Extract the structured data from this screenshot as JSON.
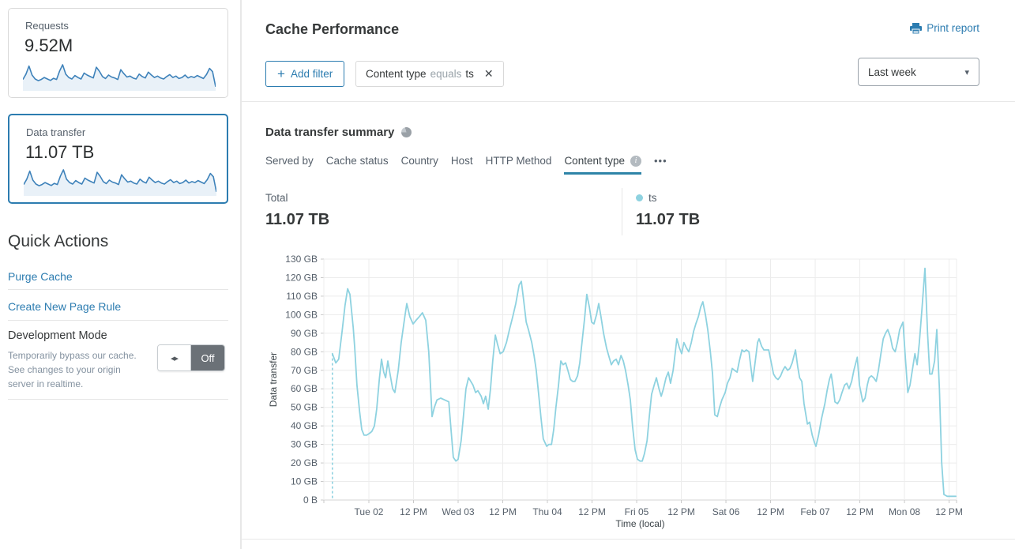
{
  "colors": {
    "accent_blue": "#2c7cb0",
    "tab_underline": "#2e84a8",
    "chart_line": "#8ed2e0",
    "legend_dot": "#8ed2e0",
    "sparkline_line": "#3e82ba",
    "sparkline_fill": "#e9f1f8",
    "toggle_off_bg": "#6b7177"
  },
  "icons": {
    "plus": "+",
    "close": "✕",
    "caret_down": "▾",
    "toggle_arrows": "◂▸",
    "more_dots": "•••",
    "info": "i"
  },
  "sidebar": {
    "cards": [
      {
        "title": "Requests",
        "value": "9.52M",
        "selected": false
      },
      {
        "title": "Data transfer",
        "value": "11.07 TB",
        "selected": true
      }
    ],
    "sparkline_note": "relative scale 0-100",
    "sparkline": [
      40,
      62,
      95,
      58,
      42,
      35,
      40,
      48,
      42,
      36,
      45,
      40,
      75,
      100,
      62,
      48,
      42,
      56,
      48,
      42,
      66,
      58,
      52,
      46,
      90,
      74,
      52,
      44,
      58,
      50,
      46,
      40,
      80,
      64,
      50,
      54,
      46,
      42,
      62,
      52,
      46,
      70,
      58,
      48,
      54,
      46,
      42,
      52,
      60,
      48,
      54,
      44,
      48,
      58,
      46,
      52,
      48,
      56,
      50,
      44,
      60,
      85,
      72,
      10
    ],
    "quick_actions": {
      "heading": "Quick Actions",
      "links": [
        {
          "label": "Purge Cache"
        },
        {
          "label": "Create New Page Rule"
        }
      ],
      "dev_mode": {
        "title": "Development Mode",
        "description": "Temporarily bypass our cache. See changes to your origin server in realtime.",
        "toggle_label": "Off"
      }
    }
  },
  "header": {
    "title": "Cache Performance",
    "print_label": "Print report"
  },
  "filters": {
    "add_label": "Add filter",
    "chip": {
      "field": "Content type",
      "operator": "equals",
      "value": "ts"
    },
    "time_range": "Last week"
  },
  "summary": {
    "heading": "Data transfer summary",
    "tabs": [
      {
        "label": "Served by"
      },
      {
        "label": "Cache status"
      },
      {
        "label": "Country"
      },
      {
        "label": "Host"
      },
      {
        "label": "HTTP Method"
      },
      {
        "label": "Content type",
        "active": true,
        "has_info": true
      }
    ],
    "stats": [
      {
        "label": "Total",
        "value": "11.07 TB"
      },
      {
        "label": "ts",
        "value": "11.07 TB",
        "dot_color": "#8ed2e0"
      }
    ]
  },
  "chart_data": {
    "type": "line",
    "title": "Data transfer summary",
    "xlabel": "Time (local)",
    "ylabel": "Data transfer",
    "x_ticks": [
      "Tue 02",
      "12 PM",
      "Wed 03",
      "12 PM",
      "Thu 04",
      "12 PM",
      "Fri 05",
      "12 PM",
      "Sat 06",
      "12 PM",
      "Feb 07",
      "12 PM",
      "Mon 08",
      "12 PM"
    ],
    "x_tick_hours": [
      0,
      12,
      24,
      36,
      48,
      60,
      72,
      84,
      96,
      108,
      120,
      132,
      144,
      156
    ],
    "x_unit": "hours relative to Tue 02 00:00",
    "x_range": [
      -12.1,
      158
    ],
    "y_ticks": [
      "0 B",
      "10 GB",
      "20 GB",
      "30 GB",
      "40 GB",
      "50 GB",
      "60 GB",
      "70 GB",
      "80 GB",
      "90 GB",
      "100 GB",
      "110 GB",
      "120 GB",
      "130 GB"
    ],
    "y_range": [
      0,
      130
    ],
    "y_unit": "GB",
    "grid": true,
    "legend_position": "top-right",
    "legend": [
      {
        "label": "ts",
        "color": "#8ed2e0"
      }
    ],
    "series": [
      {
        "name": "ts",
        "color": "#8ed2e0",
        "leading_dashed": true,
        "points": [
          [
            -9.8,
            79
          ],
          [
            -8.9,
            74
          ],
          [
            -8.1,
            76
          ],
          [
            -7.2,
            91
          ],
          [
            -6.4,
            105
          ],
          [
            -5.7,
            114
          ],
          [
            -5.1,
            111
          ],
          [
            -4.2,
            93
          ],
          [
            -3.8,
            82
          ],
          [
            -3.2,
            62
          ],
          [
            -2.5,
            48
          ],
          [
            -1.9,
            38
          ],
          [
            -1.3,
            35
          ],
          [
            -0.6,
            35
          ],
          [
            0.2,
            36
          ],
          [
            0.8,
            37
          ],
          [
            1.5,
            40
          ],
          [
            2.1,
            49
          ],
          [
            2.8,
            65
          ],
          [
            3.4,
            76
          ],
          [
            4,
            69
          ],
          [
            4.5,
            66
          ],
          [
            5.1,
            75
          ],
          [
            5.7,
            68
          ],
          [
            6.4,
            60
          ],
          [
            7,
            58
          ],
          [
            7.9,
            70
          ],
          [
            8.7,
            85
          ],
          [
            9.6,
            98
          ],
          [
            10.2,
            106
          ],
          [
            11,
            99
          ],
          [
            11.9,
            95
          ],
          [
            12.7,
            97
          ],
          [
            13.6,
            99
          ],
          [
            14.4,
            101
          ],
          [
            15.3,
            97
          ],
          [
            16.1,
            80
          ],
          [
            17,
            45
          ],
          [
            17.6,
            50
          ],
          [
            18.3,
            54
          ],
          [
            19.3,
            55
          ],
          [
            20.4,
            54
          ],
          [
            21.5,
            53
          ],
          [
            22.1,
            38
          ],
          [
            22.7,
            23
          ],
          [
            23.4,
            21
          ],
          [
            24,
            22
          ],
          [
            24.8,
            32
          ],
          [
            25.5,
            47
          ],
          [
            26.1,
            60
          ],
          [
            26.8,
            66
          ],
          [
            27.4,
            64
          ],
          [
            28,
            62
          ],
          [
            28.7,
            58
          ],
          [
            29.3,
            59
          ],
          [
            30.2,
            56
          ],
          [
            30.8,
            52
          ],
          [
            31.4,
            56
          ],
          [
            32.1,
            49
          ],
          [
            32.7,
            60
          ],
          [
            33.3,
            75
          ],
          [
            34,
            89
          ],
          [
            34.6,
            84
          ],
          [
            35.3,
            79
          ],
          [
            36.1,
            80
          ],
          [
            37,
            85
          ],
          [
            37.8,
            92
          ],
          [
            38.7,
            99
          ],
          [
            39.5,
            106
          ],
          [
            40.4,
            116
          ],
          [
            41,
            118
          ],
          [
            41.6,
            108
          ],
          [
            42.3,
            96
          ],
          [
            42.9,
            92
          ],
          [
            43.8,
            85
          ],
          [
            44.4,
            78
          ],
          [
            45,
            70
          ],
          [
            45.7,
            56
          ],
          [
            46.3,
            44
          ],
          [
            46.9,
            33
          ],
          [
            47.8,
            29
          ],
          [
            48.4,
            30
          ],
          [
            49.1,
            30
          ],
          [
            49.7,
            38
          ],
          [
            50.3,
            50
          ],
          [
            51,
            62
          ],
          [
            51.6,
            75
          ],
          [
            52.2,
            73
          ],
          [
            52.9,
            74
          ],
          [
            53.5,
            70
          ],
          [
            54.2,
            65
          ],
          [
            54.8,
            64
          ],
          [
            55.4,
            64
          ],
          [
            56.1,
            67
          ],
          [
            56.7,
            74
          ],
          [
            57.3,
            85
          ],
          [
            58,
            98
          ],
          [
            58.6,
            111
          ],
          [
            59.3,
            104
          ],
          [
            59.9,
            96
          ],
          [
            60.5,
            95
          ],
          [
            61.2,
            100
          ],
          [
            61.8,
            106
          ],
          [
            62.4,
            99
          ],
          [
            63.1,
            90
          ],
          [
            63.9,
            82
          ],
          [
            64.6,
            77
          ],
          [
            65.2,
            73
          ],
          [
            65.8,
            75
          ],
          [
            66.5,
            76
          ],
          [
            67.1,
            73
          ],
          [
            67.8,
            78
          ],
          [
            68.4,
            75
          ],
          [
            69,
            70
          ],
          [
            69.7,
            62
          ],
          [
            70.3,
            54
          ],
          [
            70.9,
            40
          ],
          [
            71.6,
            27
          ],
          [
            72.2,
            22
          ],
          [
            72.9,
            21
          ],
          [
            73.5,
            21
          ],
          [
            74.1,
            25
          ],
          [
            74.8,
            32
          ],
          [
            75.4,
            45
          ],
          [
            76,
            57
          ],
          [
            76.7,
            62
          ],
          [
            77.3,
            66
          ],
          [
            78,
            60
          ],
          [
            78.6,
            56
          ],
          [
            79.2,
            60
          ],
          [
            79.9,
            66
          ],
          [
            80.5,
            69
          ],
          [
            81.1,
            63
          ],
          [
            81.8,
            70
          ],
          [
            82.4,
            80
          ],
          [
            82.8,
            87
          ],
          [
            83.5,
            82
          ],
          [
            84.1,
            79
          ],
          [
            84.7,
            85
          ],
          [
            85.4,
            82
          ],
          [
            86,
            80
          ],
          [
            86.7,
            85
          ],
          [
            87.3,
            91
          ],
          [
            87.9,
            95
          ],
          [
            88.6,
            99
          ],
          [
            89.2,
            104
          ],
          [
            89.8,
            107
          ],
          [
            90.5,
            100
          ],
          [
            91.1,
            92
          ],
          [
            91.8,
            80
          ],
          [
            92.4,
            68
          ],
          [
            93,
            46
          ],
          [
            93.7,
            45
          ],
          [
            94.3,
            50
          ],
          [
            94.9,
            54
          ],
          [
            95.8,
            58
          ],
          [
            96.4,
            63
          ],
          [
            97.1,
            66
          ],
          [
            97.7,
            71
          ],
          [
            98.3,
            70
          ],
          [
            99,
            69
          ],
          [
            99.6,
            75
          ],
          [
            100.3,
            81
          ],
          [
            100.9,
            80
          ],
          [
            101.5,
            81
          ],
          [
            102.2,
            80
          ],
          [
            102.8,
            70
          ],
          [
            103.2,
            64
          ],
          [
            103.9,
            75
          ],
          [
            104.5,
            85
          ],
          [
            104.9,
            87
          ],
          [
            105.6,
            83
          ],
          [
            106.2,
            81
          ],
          [
            106.8,
            81
          ],
          [
            107.5,
            81
          ],
          [
            108.1,
            75
          ],
          [
            108.8,
            68
          ],
          [
            109.4,
            66
          ],
          [
            110,
            65
          ],
          [
            110.7,
            67
          ],
          [
            111.3,
            70
          ],
          [
            111.9,
            72
          ],
          [
            112.6,
            70
          ],
          [
            113.2,
            71
          ],
          [
            113.8,
            74
          ],
          [
            114.7,
            81
          ],
          [
            115.3,
            72
          ],
          [
            115.8,
            66
          ],
          [
            116.4,
            64
          ],
          [
            117,
            52
          ],
          [
            117.9,
            41
          ],
          [
            118.5,
            42
          ],
          [
            119.2,
            35
          ],
          [
            119.8,
            31
          ],
          [
            120.2,
            29
          ],
          [
            120.9,
            35
          ],
          [
            121.7,
            44
          ],
          [
            122.6,
            52
          ],
          [
            123.2,
            59
          ],
          [
            123.8,
            65
          ],
          [
            124.3,
            68
          ],
          [
            124.9,
            60
          ],
          [
            125.3,
            53
          ],
          [
            126,
            52
          ],
          [
            126.6,
            54
          ],
          [
            127.2,
            58
          ],
          [
            127.9,
            62
          ],
          [
            128.5,
            63
          ],
          [
            129.1,
            60
          ],
          [
            129.8,
            64
          ],
          [
            130.4,
            70
          ],
          [
            131.3,
            77
          ],
          [
            131.9,
            62
          ],
          [
            132.8,
            53
          ],
          [
            133.4,
            55
          ],
          [
            134,
            62
          ],
          [
            134.5,
            66
          ],
          [
            135.1,
            67
          ],
          [
            135.7,
            66
          ],
          [
            136.4,
            64
          ],
          [
            137,
            70
          ],
          [
            137.6,
            78
          ],
          [
            138.3,
            87
          ],
          [
            138.9,
            90
          ],
          [
            139.5,
            92
          ],
          [
            140.2,
            88
          ],
          [
            140.8,
            82
          ],
          [
            141.5,
            80
          ],
          [
            142.1,
            85
          ],
          [
            142.7,
            92
          ],
          [
            143.6,
            96
          ],
          [
            144.2,
            78
          ],
          [
            144.9,
            58
          ],
          [
            145.5,
            62
          ],
          [
            146.1,
            70
          ],
          [
            146.8,
            79
          ],
          [
            147.4,
            73
          ],
          [
            148,
            85
          ],
          [
            148.7,
            103
          ],
          [
            149.5,
            125
          ],
          [
            150.2,
            90
          ],
          [
            150.8,
            68
          ],
          [
            151.4,
            68
          ],
          [
            152.1,
            75
          ],
          [
            152.7,
            92
          ],
          [
            153.4,
            60
          ],
          [
            154,
            20
          ],
          [
            154.6,
            3
          ],
          [
            155.5,
            2
          ],
          [
            156.3,
            2
          ],
          [
            157.2,
            2
          ],
          [
            157.8,
            2
          ]
        ]
      }
    ]
  }
}
